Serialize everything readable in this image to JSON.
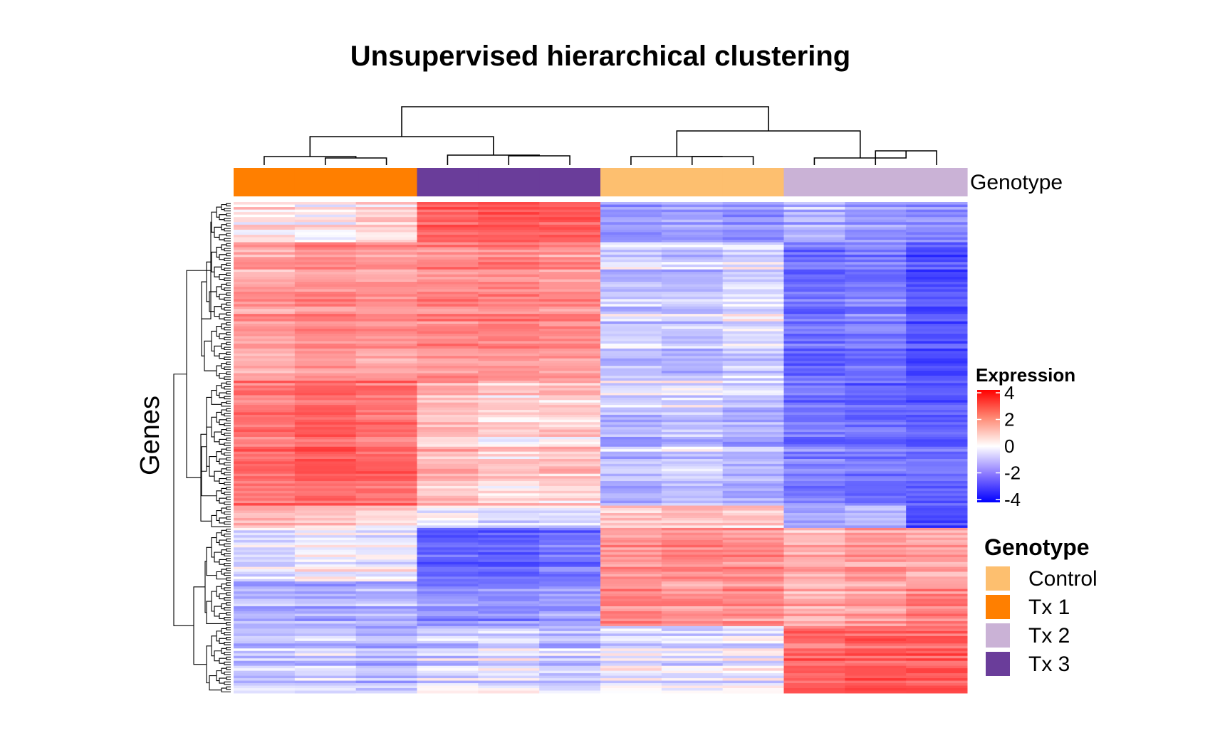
{
  "chart_data": {
    "type": "heatmap",
    "title": "Unsupervised hierarchical clustering",
    "ylabel": "Genes",
    "annotation_label": "Genotype",
    "column_groups": [
      "Tx 1",
      "Tx 1",
      "Tx 1",
      "Tx 3",
      "Tx 3",
      "Tx 3",
      "Control",
      "Control",
      "Control",
      "Tx 2",
      "Tx 2",
      "Tx 2"
    ],
    "row_blocks": [
      {
        "weight": 9,
        "values": [
          0.3,
          0.1,
          0.4,
          2.2,
          2.4,
          2.3,
          -1.3,
          -1.1,
          -1.4,
          -0.9,
          -1.2,
          -1.5
        ]
      },
      {
        "weight": 31,
        "values": [
          1.2,
          1.4,
          1.3,
          1.5,
          1.6,
          1.4,
          -0.6,
          -0.7,
          -0.4,
          -2.0,
          -1.8,
          -2.5
        ]
      },
      {
        "weight": 6,
        "values": [
          1.9,
          2.1,
          1.9,
          0.9,
          0.6,
          0.7,
          -0.3,
          -0.2,
          -0.5,
          -1.9,
          -2.1,
          -2.3
        ]
      },
      {
        "weight": 22,
        "values": [
          2.0,
          2.3,
          2.1,
          0.8,
          0.5,
          0.6,
          -0.8,
          -0.6,
          -0.9,
          -1.7,
          -1.9,
          -2.0
        ]
      },
      {
        "weight": 5,
        "values": [
          0.5,
          0.3,
          0.2,
          -0.4,
          -0.6,
          -0.5,
          0.3,
          0.4,
          0.3,
          -1.3,
          -1.0,
          -2.8
        ]
      },
      {
        "weight": 12,
        "values": [
          -0.3,
          0.0,
          -0.1,
          -2.1,
          -2.2,
          -1.9,
          1.4,
          1.6,
          1.5,
          1.0,
          1.3,
          1.1
        ]
      },
      {
        "weight": 10,
        "values": [
          -0.9,
          -1.1,
          -1.0,
          -1.4,
          -1.5,
          -1.3,
          1.6,
          1.4,
          1.5,
          0.9,
          1.1,
          1.6
        ]
      },
      {
        "weight": 15,
        "values": [
          -0.7,
          -0.6,
          -0.9,
          -0.5,
          -0.4,
          -0.7,
          -0.2,
          -0.4,
          -0.1,
          2.1,
          2.3,
          2.2
        ]
      }
    ],
    "color_scale": {
      "name": "Expression",
      "min": -4,
      "max": 4,
      "ticks": [
        4,
        2,
        0,
        -2,
        -4
      ],
      "low_color": "#0000ff",
      "mid_color": "#ffffff",
      "high_color": "#ff0000"
    },
    "legend": {
      "title": "Genotype",
      "items": [
        {
          "label": "Control",
          "color": "#fdbf6f"
        },
        {
          "label": "Tx 1",
          "color": "#ff7f00"
        },
        {
          "label": "Tx 2",
          "color": "#cab2d6"
        },
        {
          "label": "Tx 3",
          "color": "#6a3d9a"
        }
      ]
    }
  }
}
